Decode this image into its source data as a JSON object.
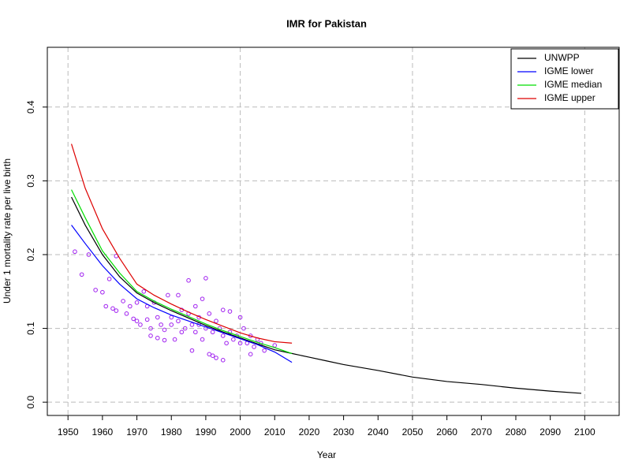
{
  "chart_data": {
    "type": "line",
    "title": "IMR for Pakistan",
    "x_label": "Year",
    "y_label": "Under 1 mortality rate per live birth",
    "xlim": [
      1944,
      2110
    ],
    "ylim": [
      -0.018,
      0.481
    ],
    "xticks": [
      1950,
      1960,
      1970,
      1980,
      1990,
      2000,
      2010,
      2020,
      2030,
      2040,
      2050,
      2060,
      2070,
      2080,
      2090,
      2100
    ],
    "yticks": [
      {
        "value": 0,
        "label": "0.0"
      },
      0.1,
      0.2,
      0.3,
      0.4
    ],
    "xgrid": [
      1950,
      2000,
      2050,
      2100
    ],
    "grid": true,
    "legend": "top-right",
    "series": [
      {
        "name": "UNWPP",
        "color": "#000000",
        "x": [
          1951,
          1955,
          1960,
          1965,
          1970,
          1975,
          1980,
          1985,
          1990,
          1995,
          2000,
          2005,
          2010,
          2015,
          2020,
          2025,
          2030,
          2040,
          2050,
          2060,
          2070,
          2080,
          2090,
          2099
        ],
        "values": [
          0.278,
          0.24,
          0.2,
          0.17,
          0.148,
          0.135,
          0.124,
          0.114,
          0.104,
          0.095,
          0.087,
          0.079,
          0.071,
          0.066,
          0.061,
          0.056,
          0.051,
          0.043,
          0.034,
          0.028,
          0.024,
          0.019,
          0.015,
          0.012
        ]
      },
      {
        "name": "IGME lower",
        "color": "#0000ff",
        "x": [
          1951,
          1955,
          1960,
          1965,
          1970,
          1975,
          1980,
          1985,
          1990,
          1995,
          2000,
          2005,
          2010,
          2015
        ],
        "values": [
          0.24,
          0.215,
          0.185,
          0.16,
          0.14,
          0.128,
          0.118,
          0.11,
          0.102,
          0.094,
          0.086,
          0.078,
          0.068,
          0.054
        ]
      },
      {
        "name": "IGME median",
        "color": "#00dd00",
        "x": [
          1951,
          1955,
          1960,
          1965,
          1970,
          1975,
          1980,
          1985,
          1990,
          1995,
          2000,
          2005,
          2010,
          2015
        ],
        "values": [
          0.288,
          0.25,
          0.205,
          0.175,
          0.15,
          0.137,
          0.126,
          0.116,
          0.106,
          0.097,
          0.089,
          0.081,
          0.074,
          0.066
        ]
      },
      {
        "name": "IGME upper",
        "color": "#dd0000",
        "x": [
          1951,
          1955,
          1960,
          1965,
          1970,
          1975,
          1980,
          1985,
          1990,
          1995,
          2000,
          2005,
          2010,
          2015
        ],
        "values": [
          0.35,
          0.29,
          0.235,
          0.195,
          0.16,
          0.145,
          0.133,
          0.122,
          0.112,
          0.103,
          0.094,
          0.087,
          0.082,
          0.08
        ]
      }
    ],
    "points": {
      "color": "#a020f0",
      "x": [
        1952,
        1954,
        1956,
        1958,
        1960,
        1961,
        1962,
        1963,
        1964,
        1964,
        1966,
        1967,
        1968,
        1969,
        1970,
        1970,
        1971,
        1972,
        1973,
        1973,
        1974,
        1974,
        1975,
        1976,
        1976,
        1977,
        1978,
        1978,
        1979,
        1980,
        1980,
        1981,
        1982,
        1982,
        1983,
        1983,
        1984,
        1985,
        1985,
        1986,
        1986,
        1987,
        1987,
        1988,
        1988,
        1989,
        1989,
        1990,
        1990,
        1991,
        1991,
        1992,
        1992,
        1993,
        1993,
        1994,
        1995,
        1995,
        1995,
        1996,
        1997,
        1997,
        1998,
        1999,
        2000,
        2000,
        2001,
        2002,
        2003,
        2003,
        2004,
        2005,
        2006,
        2007,
        2010
      ],
      "values": [
        0.204,
        0.173,
        0.2,
        0.152,
        0.149,
        0.13,
        0.167,
        0.127,
        0.198,
        0.124,
        0.137,
        0.12,
        0.13,
        0.113,
        0.11,
        0.135,
        0.105,
        0.15,
        0.112,
        0.13,
        0.1,
        0.09,
        0.135,
        0.115,
        0.087,
        0.105,
        0.098,
        0.084,
        0.145,
        0.115,
        0.105,
        0.085,
        0.11,
        0.145,
        0.125,
        0.095,
        0.1,
        0.165,
        0.12,
        0.105,
        0.07,
        0.13,
        0.095,
        0.115,
        0.105,
        0.085,
        0.14,
        0.168,
        0.1,
        0.065,
        0.12,
        0.095,
        0.063,
        0.11,
        0.06,
        0.1,
        0.125,
        0.057,
        0.09,
        0.08,
        0.123,
        0.095,
        0.085,
        0.09,
        0.115,
        0.08,
        0.1,
        0.08,
        0.065,
        0.09,
        0.075,
        0.085,
        0.08,
        0.07,
        0.077
      ]
    }
  }
}
